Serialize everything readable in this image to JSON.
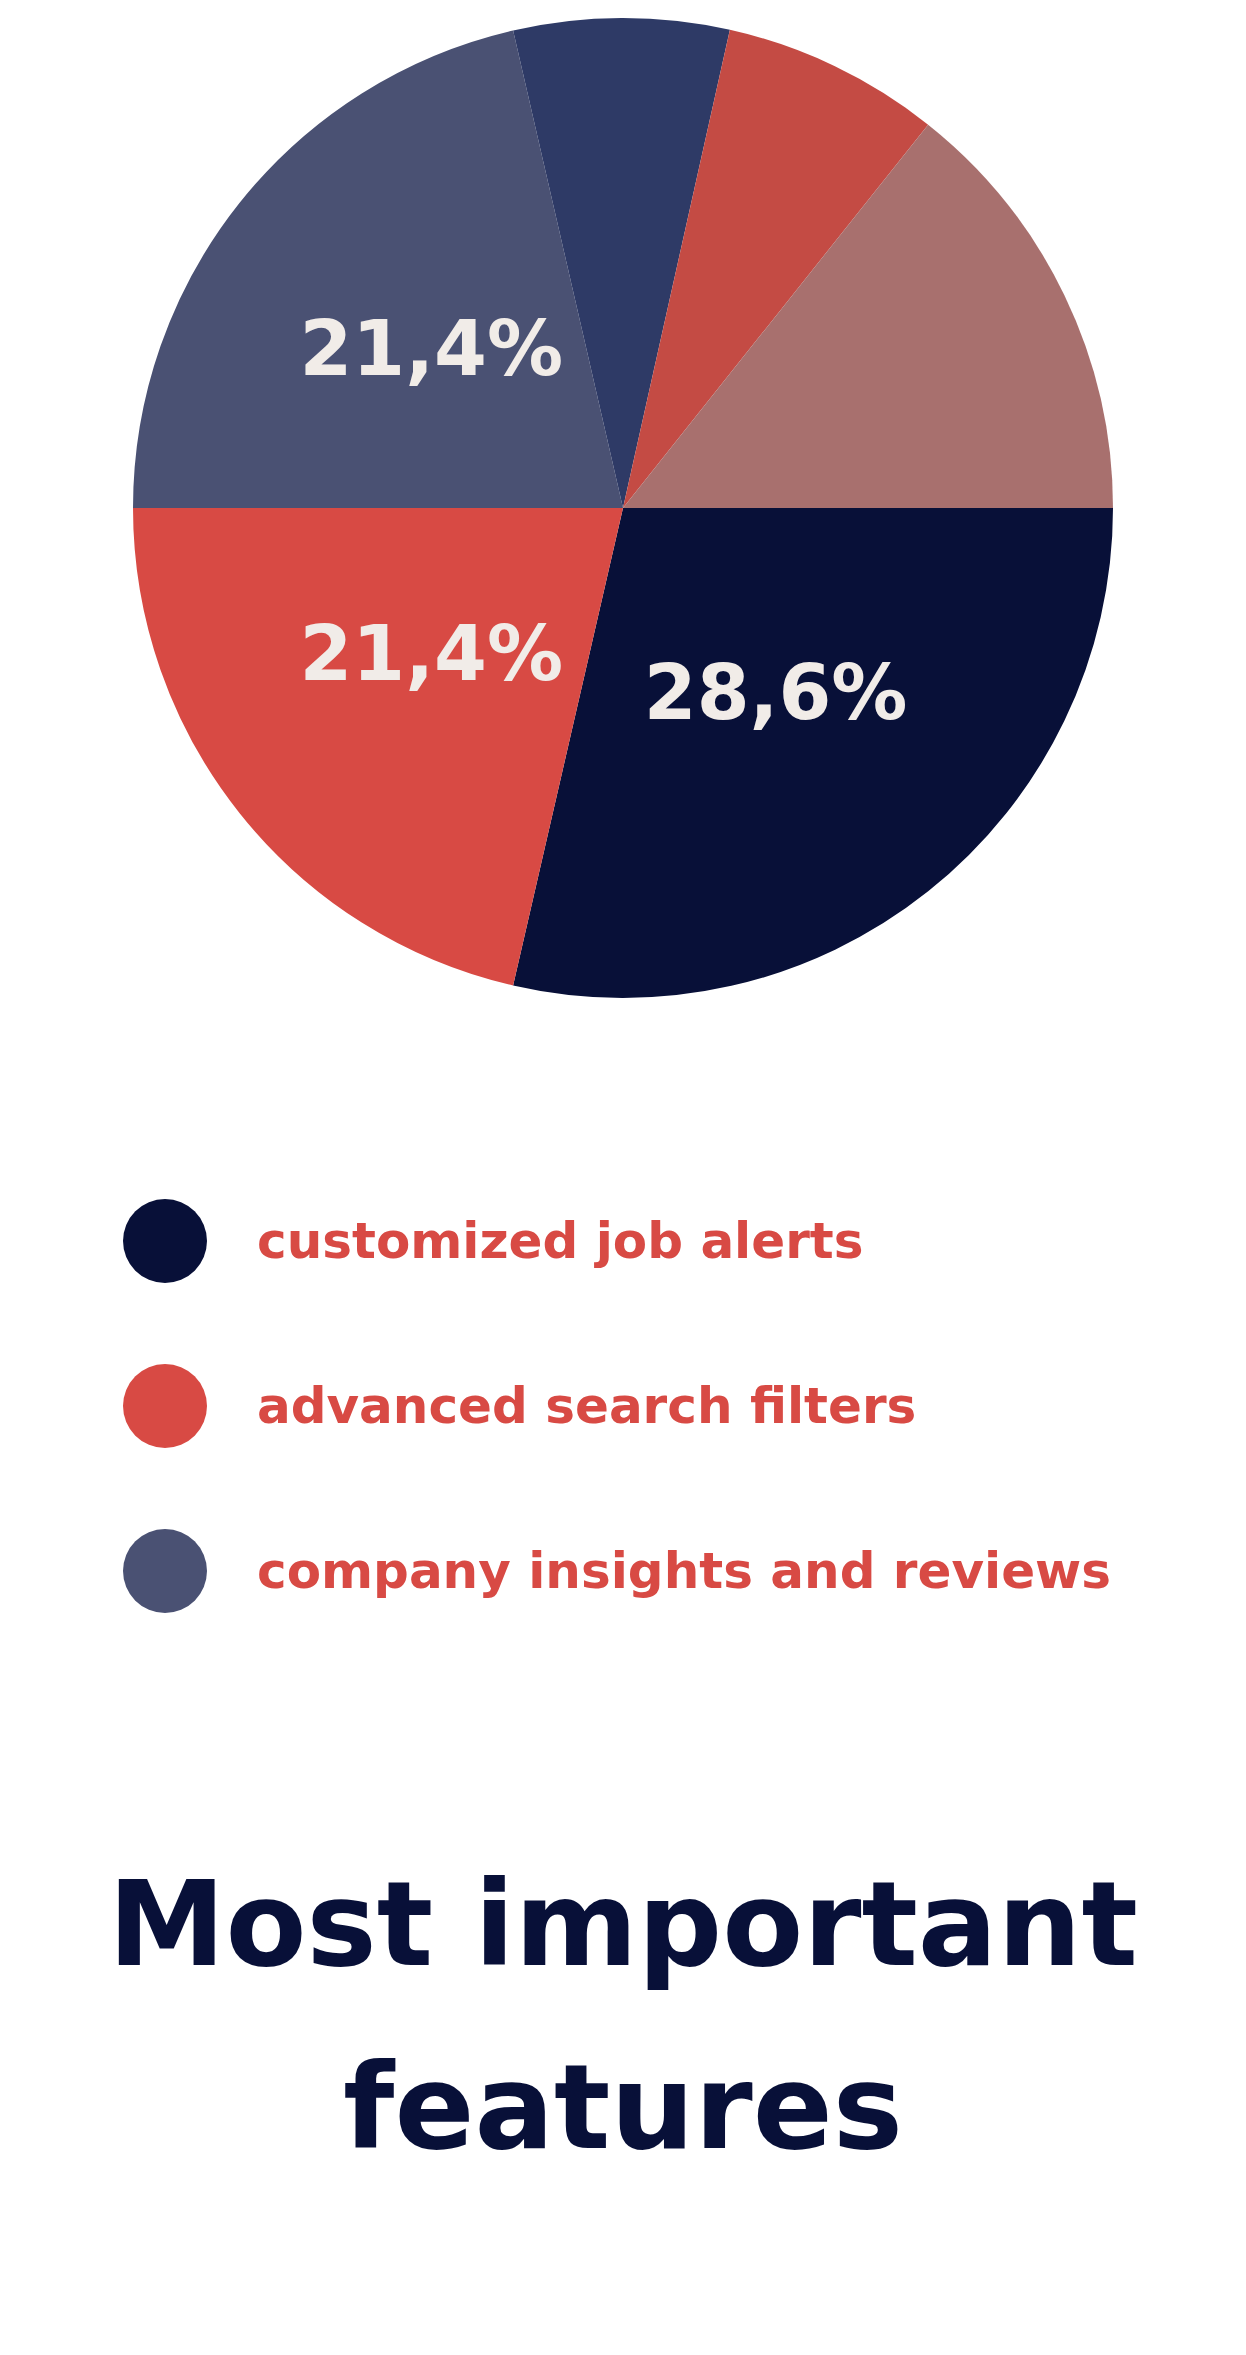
{
  "chart_data": {
    "type": "pie",
    "title": "Most important features",
    "categories": [
      "customized job alerts",
      "advanced search filters",
      "company insights and reviews",
      null,
      null,
      null
    ],
    "values": [
      28.6,
      21.4,
      21.4,
      7.1,
      7.2,
      14.3
    ],
    "colors": [
      "#081038",
      "#d84a44",
      "#4a5173",
      "#2e3a66",
      "#c44b44",
      "#a8706e"
    ],
    "value_labels": [
      "28,6%",
      "21,4%",
      "21,4%",
      null,
      null,
      null
    ],
    "legend": "bottom"
  }
}
